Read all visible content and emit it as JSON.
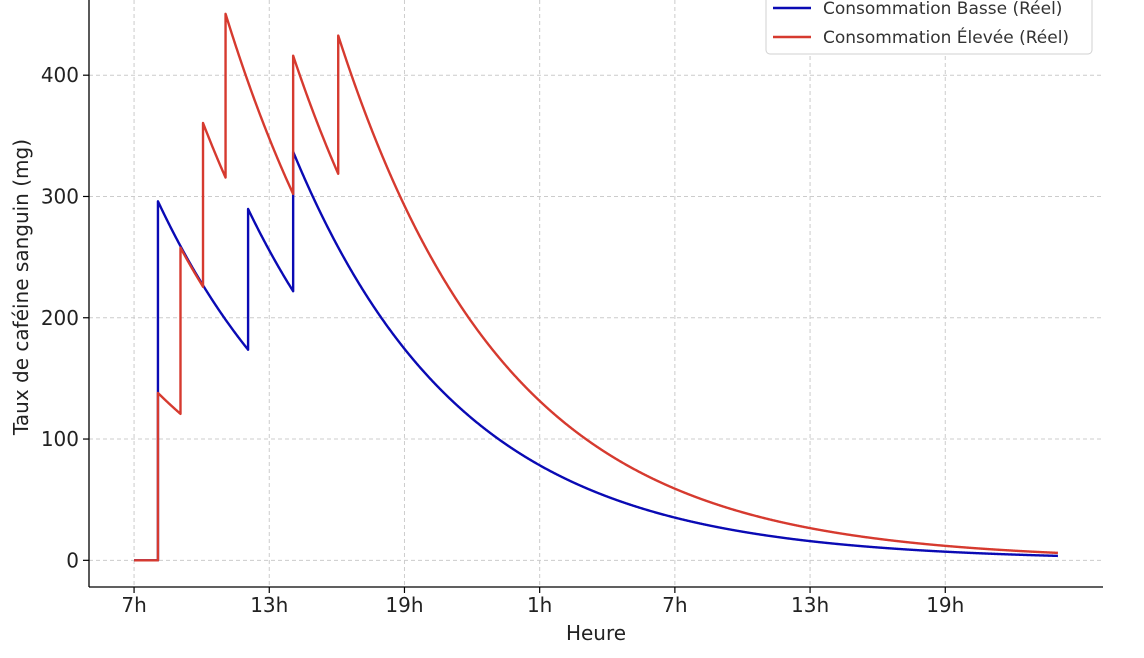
{
  "chart_data": {
    "type": "line",
    "title": "",
    "xlabel": "Heure",
    "ylabel": "Taux de caféine sanguin (mg)",
    "xlim": [
      -2,
      43
    ],
    "ylim": [
      -22,
      462
    ],
    "grid": true,
    "legend_position": "top-right",
    "x_unit": "hours",
    "x_ticks": [
      {
        "x": 0,
        "label": "7h"
      },
      {
        "x": 6,
        "label": "13h"
      },
      {
        "x": 12,
        "label": "19h"
      },
      {
        "x": 18,
        "label": "1h"
      },
      {
        "x": 24,
        "label": "7h"
      },
      {
        "x": 30,
        "label": "13h"
      },
      {
        "x": 36,
        "label": "19h"
      }
    ],
    "y_ticks": [
      0,
      100,
      200,
      300,
      400
    ],
    "series": [
      {
        "name": "Consommation Basse (Réel)",
        "color": "#0a0ab4",
        "intakes": [
          {
            "x": 1.05,
            "dose": 296
          },
          {
            "x": 5.05,
            "dose": 116
          },
          {
            "x": 7.05,
            "dose": 115
          }
        ],
        "end_x": 41
      },
      {
        "name": "Consommation Élevée (Réel)",
        "color": "#d63a2f",
        "intakes": [
          {
            "x": 1.05,
            "dose": 138
          },
          {
            "x": 2.05,
            "dose": 137
          },
          {
            "x": 3.05,
            "dose": 135
          },
          {
            "x": 4.05,
            "dose": 135
          },
          {
            "x": 7.05,
            "dose": 114
          },
          {
            "x": 9.05,
            "dose": 114
          }
        ],
        "end_x": 41
      }
    ]
  }
}
